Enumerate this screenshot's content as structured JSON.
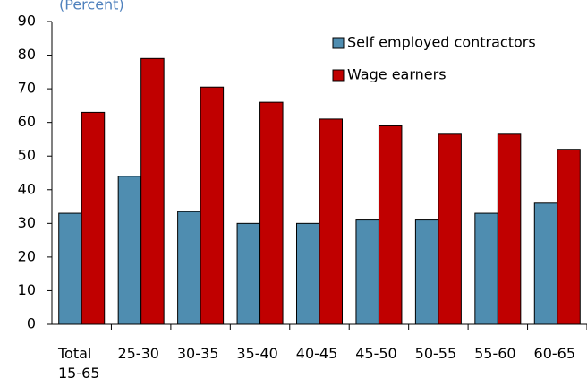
{
  "chart_data": {
    "type": "bar",
    "subtitle": "(Percent)",
    "categories": [
      "Total 15-65",
      "25-30",
      "30-35",
      "35-40",
      "40-45",
      "45-50",
      "50-55",
      "55-60",
      "60-65"
    ],
    "series": [
      {
        "name": "Self employed contractors",
        "color": "#4f8db0",
        "values": [
          33,
          44,
          33.5,
          30,
          30,
          31,
          31,
          33,
          36
        ]
      },
      {
        "name": "Wage earners",
        "color": "#c00000",
        "values": [
          63,
          79,
          70.5,
          66,
          61,
          59,
          56.5,
          56.5,
          52
        ]
      }
    ],
    "ylim": [
      0,
      90
    ],
    "yticks": [
      0,
      10,
      20,
      30,
      40,
      50,
      60,
      70,
      80,
      90
    ],
    "legend": "upper right",
    "grid": false
  }
}
